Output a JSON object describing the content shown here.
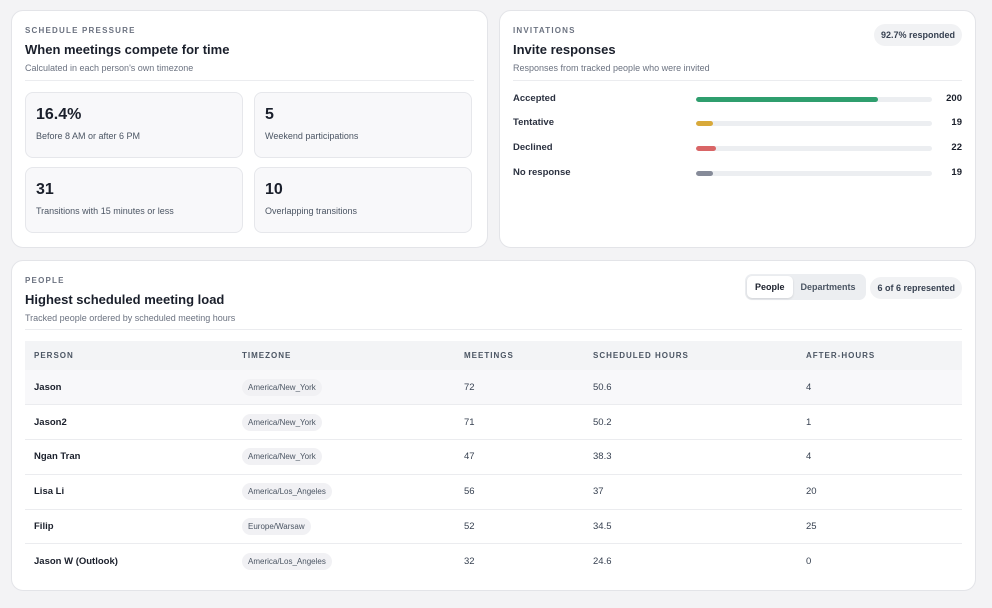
{
  "pressure": {
    "eyebrow": "SCHEDULE PRESSURE",
    "title": "When meetings compete for time",
    "subtitle": "Calculated in each person's own timezone",
    "stats": [
      {
        "value": "16.4%",
        "label": "Before 8 AM or after 6 PM"
      },
      {
        "value": "5",
        "label": "Weekend participations"
      },
      {
        "value": "31",
        "label": "Transitions with 15 minutes or less"
      },
      {
        "value": "10",
        "label": "Overlapping transitions"
      }
    ]
  },
  "invitations": {
    "eyebrow": "INVITATIONS",
    "title": "Invite responses",
    "subtitle": "Responses from tracked people who were invited",
    "badge": "92.7% responded",
    "rows": [
      {
        "label": "Accepted",
        "count": "200",
        "fraction": 0.77,
        "color": "#2f9e6e"
      },
      {
        "label": "Tentative",
        "count": "19",
        "fraction": 0.073,
        "color": "#d8a93a"
      },
      {
        "label": "Declined",
        "count": "22",
        "fraction": 0.085,
        "color": "#d96566"
      },
      {
        "label": "No response",
        "count": "19",
        "fraction": 0.073,
        "color": "#868b99"
      }
    ]
  },
  "people": {
    "eyebrow": "PEOPLE",
    "title": "Highest scheduled meeting load",
    "subtitle": "Tracked people ordered by scheduled meeting hours",
    "toggle": {
      "people": "People",
      "departments": "Departments"
    },
    "badge": "6 of 6 represented",
    "columns": [
      "PERSON",
      "TIMEZONE",
      "MEETINGS",
      "SCHEDULED HOURS",
      "AFTER-HOURS"
    ],
    "rows": [
      {
        "name": "Jason",
        "tz": "America/New_York",
        "meetings": "72",
        "hours": "50.6",
        "after": "4"
      },
      {
        "name": "Jason2",
        "tz": "America/New_York",
        "meetings": "71",
        "hours": "50.2",
        "after": "1"
      },
      {
        "name": "Ngan Tran",
        "tz": "America/New_York",
        "meetings": "47",
        "hours": "38.3",
        "after": "4"
      },
      {
        "name": "Lisa Li",
        "tz": "America/Los_Angeles",
        "meetings": "56",
        "hours": "37",
        "after": "20"
      },
      {
        "name": "Filip",
        "tz": "Europe/Warsaw",
        "meetings": "52",
        "hours": "34.5",
        "after": "25"
      },
      {
        "name": "Jason W (Outlook)",
        "tz": "America/Los_Angeles",
        "meetings": "32",
        "hours": "24.6",
        "after": "0"
      }
    ]
  }
}
